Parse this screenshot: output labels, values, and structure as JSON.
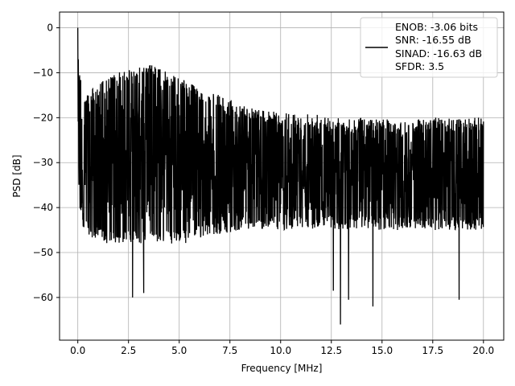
{
  "chart_data": {
    "type": "line",
    "title": "",
    "xlabel": "Frequency [MHz]",
    "ylabel": "PSD [dB]",
    "xlim": [
      -0.9,
      21.0
    ],
    "ylim": [
      -69.5,
      3.5
    ],
    "xticks": [
      0.0,
      2.5,
      5.0,
      7.5,
      10.0,
      12.5,
      15.0,
      17.5,
      20.0
    ],
    "xtick_labels": [
      "0.0",
      "2.5",
      "5.0",
      "7.5",
      "10.0",
      "12.5",
      "15.0",
      "17.5",
      "20.0"
    ],
    "yticks": [
      0,
      -10,
      -20,
      -30,
      -40,
      -50,
      -60
    ],
    "ytick_labels": [
      "0",
      "−10",
      "−20",
      "−30",
      "−40",
      "−50",
      "−60"
    ],
    "grid": true,
    "legend_position": "top-right",
    "legend_entries": [
      "ENOB: -3.06 bits",
      "SNR: -16.55 dB",
      "SINAD: -16.63 dB",
      "SFDR: 3.5"
    ],
    "series_color": "#000000",
    "envelope": {
      "x": [
        0.0,
        0.05,
        0.3,
        0.8,
        1.5,
        2.0,
        2.5,
        3.0,
        3.5,
        4.0,
        4.5,
        5.0,
        5.5,
        6.0,
        7.0,
        8.0,
        9.0,
        10.0,
        11.0,
        12.0,
        13.0,
        14.0,
        15.0,
        16.0,
        17.0,
        18.0,
        19.0,
        20.0
      ],
      "upper": [
        0,
        -8,
        -15,
        -13,
        -11,
        -10,
        -9,
        -8.5,
        -8,
        -9,
        -10,
        -11,
        -12,
        -14,
        -15,
        -17,
        -18,
        -19,
        -19,
        -19,
        -20,
        -20,
        -20,
        -21,
        -20,
        -20,
        -20,
        -20
      ],
      "lower": [
        -37,
        -40,
        -45,
        -47,
        -48,
        -48,
        -48,
        -48,
        -48,
        -48,
        -48,
        -48,
        -48,
        -47,
        -46,
        -45,
        -45,
        -45,
        -45,
        -45,
        -45,
        -45,
        -45,
        -45,
        -45,
        -45,
        -45,
        -45
      ],
      "mid": [
        -25,
        -27,
        -30,
        -29,
        -28,
        -27,
        -27,
        -27,
        -27,
        -27,
        -28,
        -28,
        -29,
        -30,
        -30,
        -31,
        -31,
        -32,
        -32,
        -32,
        -32,
        -32,
        -32,
        -33,
        -32,
        -32,
        -32,
        -32
      ]
    },
    "notable_points": [
      {
        "x": 0.0,
        "y": 0.0
      },
      {
        "x": 2.7,
        "y": -60.0
      },
      {
        "x": 3.25,
        "y": -59.0
      },
      {
        "x": 12.6,
        "y": -58.5
      },
      {
        "x": 12.95,
        "y": -66.0
      },
      {
        "x": 13.35,
        "y": -60.5
      },
      {
        "x": 14.55,
        "y": -62.0
      },
      {
        "x": 18.8,
        "y": -60.5
      }
    ],
    "n_points": 2200
  }
}
